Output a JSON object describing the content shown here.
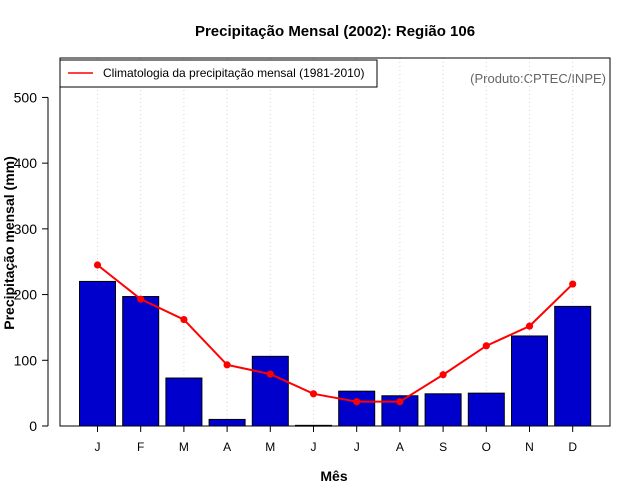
{
  "chart_data": {
    "type": "bar",
    "title": "Precipitação Mensal (2002): Região 106",
    "xlabel": "Mês",
    "ylabel": "Precipitação mensal (mm)",
    "credit": "(Produto:CPTEC/INPE)",
    "categories": [
      "J",
      "F",
      "M",
      "A",
      "M",
      "J",
      "J",
      "A",
      "S",
      "O",
      "N",
      "D"
    ],
    "ylim": [
      0,
      560
    ],
    "yticks": [
      0,
      100,
      200,
      300,
      400,
      500
    ],
    "grid": "vertical-dotted",
    "series": [
      {
        "name": "Precipitação mensal (2002)",
        "type": "bar",
        "color": "#0000CD",
        "values": [
          220,
          197,
          73,
          10,
          106,
          1,
          53,
          46,
          49,
          50,
          137,
          182
        ]
      },
      {
        "name": "Climatologia da precipitação mensal (1981-2010)",
        "type": "line",
        "color": "#FF0000",
        "values": [
          245,
          193,
          162,
          93,
          79,
          49,
          37,
          37,
          78,
          122,
          152,
          216
        ]
      }
    ],
    "legend": {
      "position": "top-left",
      "entries": [
        "Climatologia da precipitação mensal (1981-2010)"
      ]
    }
  }
}
